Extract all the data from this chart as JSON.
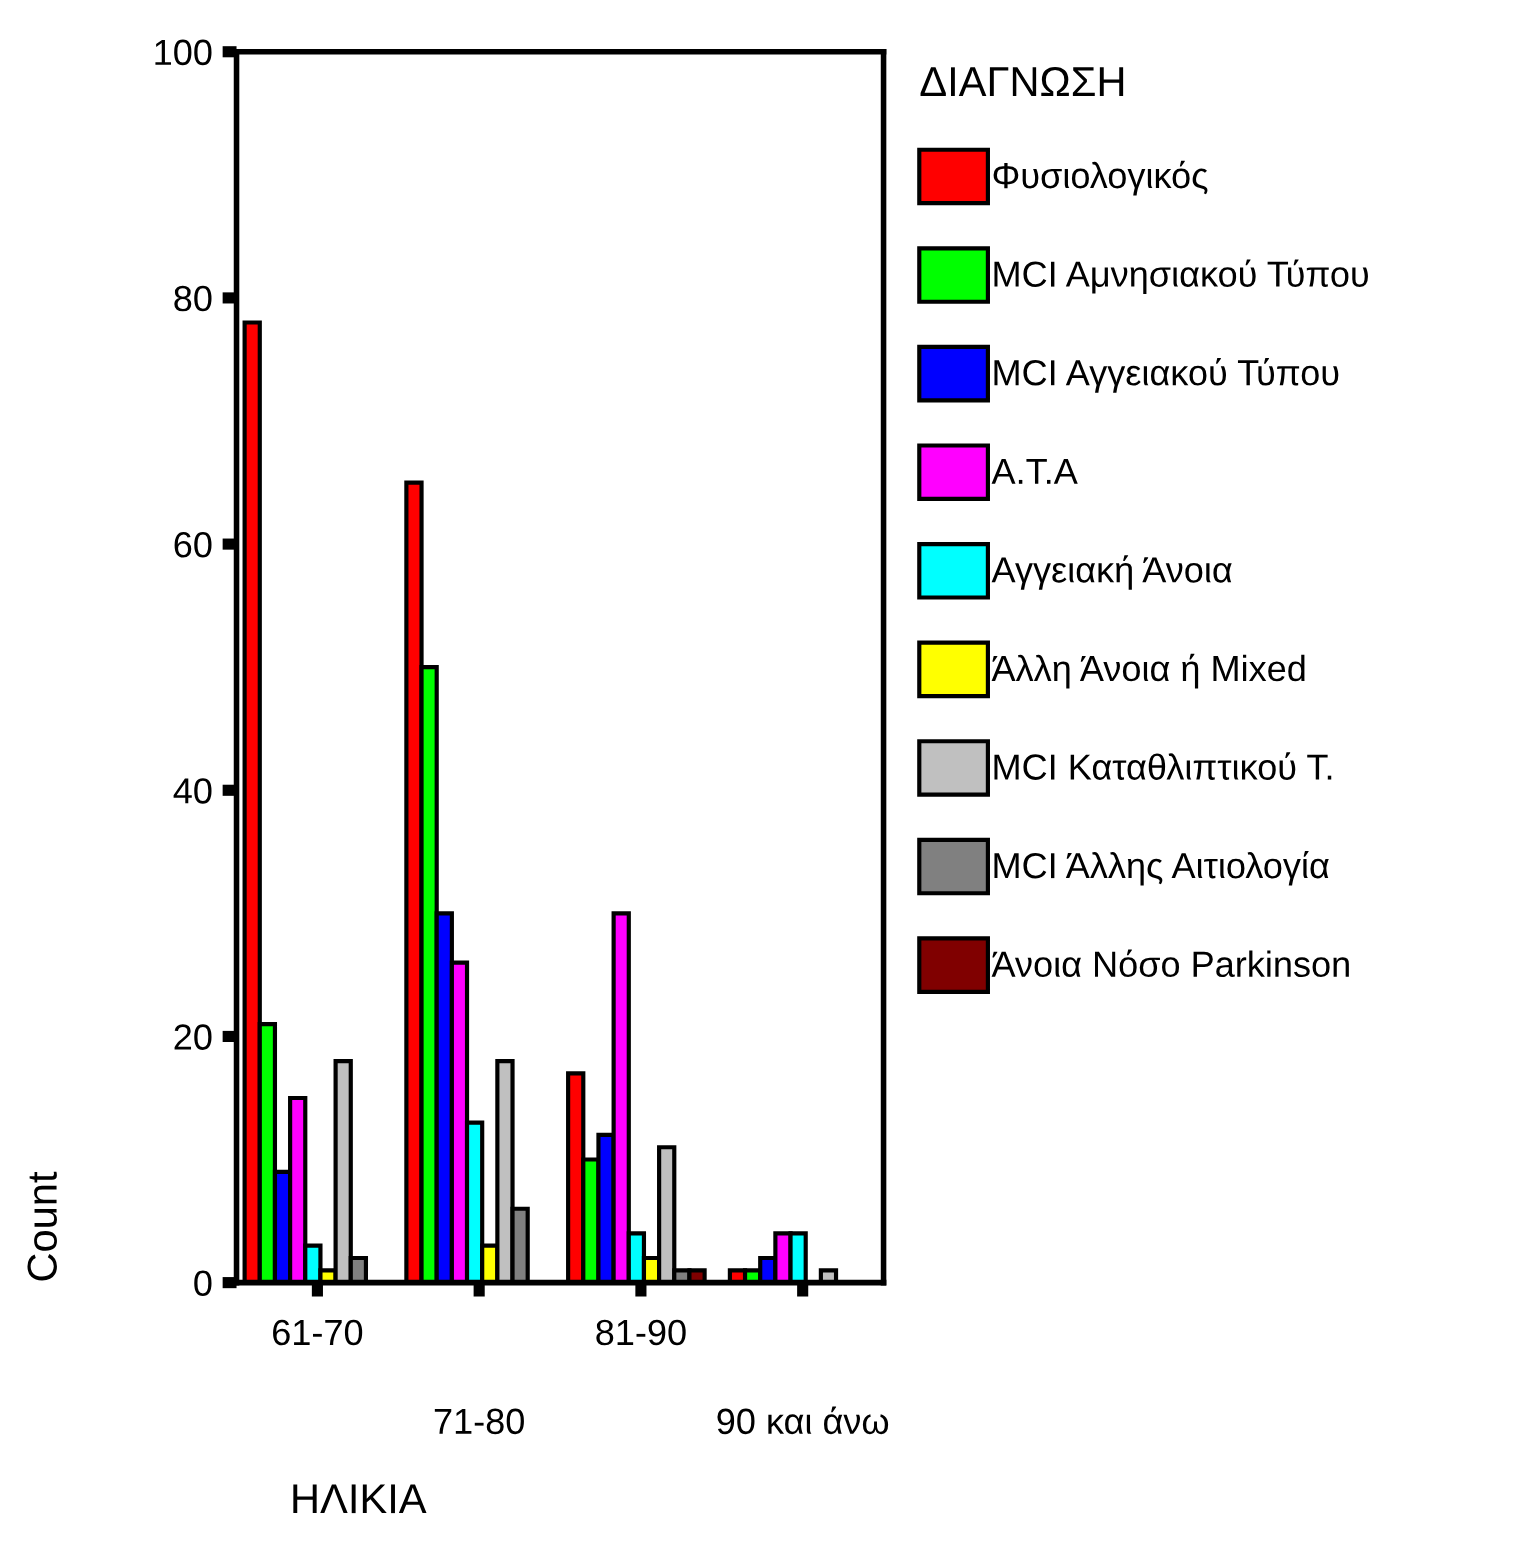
{
  "chart_data": {
    "type": "bar",
    "xlabel": "ΗΛΙΚΙΑ",
    "ylabel": "Count",
    "legend_title": "ΔΙΑΓΝΩΣΗ",
    "legend": "right",
    "categories": [
      "61-70",
      "71-80",
      "81-90",
      "90 και άνω"
    ],
    "ylim": [
      0,
      100
    ],
    "yticks": [
      0,
      20,
      40,
      60,
      80,
      100
    ],
    "grid": false,
    "series": [
      {
        "name": "Φυσιολογικός",
        "color": "#ff0000",
        "values": [
          78,
          65,
          17,
          1
        ]
      },
      {
        "name": "MCI Αμνησιακού Τύπου",
        "color": "#00ff00",
        "values": [
          21,
          50,
          10,
          1
        ]
      },
      {
        "name": "MCI Αγγειακού Τύπου",
        "color": "#0000ff",
        "values": [
          9,
          30,
          12,
          2
        ]
      },
      {
        "name": "Α.Τ.Α",
        "color": "#ff00ff",
        "values": [
          15,
          26,
          30,
          4
        ]
      },
      {
        "name": "Αγγειακή Άνοια",
        "color": "#00ffff",
        "values": [
          3,
          13,
          4,
          4
        ]
      },
      {
        "name": "Άλλη Άνοια ή Mixed",
        "color": "#ffff00",
        "values": [
          1,
          3,
          2,
          null
        ]
      },
      {
        "name": "MCI Καταθλιπτικού Τ.",
        "color": "#c0c0c0",
        "values": [
          18,
          18,
          11,
          1
        ]
      },
      {
        "name": "MCI Άλλης Αιτιολογία",
        "color": "#808080",
        "values": [
          2,
          6,
          1,
          null
        ]
      },
      {
        "name": "Άνοια Νόσο Parkinson",
        "color": "#800000",
        "values": [
          null,
          null,
          1,
          null
        ]
      }
    ]
  }
}
